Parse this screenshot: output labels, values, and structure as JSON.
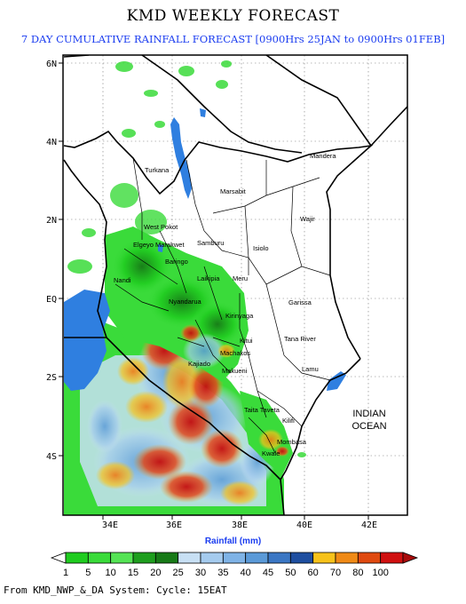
{
  "header": {
    "title": "KMD WEEKLY FORECAST",
    "subtitle": "7 DAY CUMULATIVE RAINFALL FORECAST [0900Hrs 25JAN to 0900Hrs 01FEB]"
  },
  "map": {
    "lat_ticks": [
      "6N",
      "4N",
      "2N",
      "EQ",
      "2S",
      "4S"
    ],
    "lon_ticks": [
      "34E",
      "36E",
      "38E",
      "40E",
      "42E"
    ],
    "places": [
      "Mandera",
      "Turkana",
      "Marsabit",
      "Wajir",
      "West Pokot",
      "Samburu",
      "Isiolo",
      "Baringo",
      "Laikipia",
      "Meru",
      "Garissa",
      "Kitui",
      "Tana River",
      "Lamu",
      "Kajiado",
      "Taita Taveta",
      "Kilifi",
      "Mombasa",
      "Kwale",
      "Makueni",
      "Machakos",
      "Kirinyaga",
      "Nyandarua",
      "Elgeyo Marakwet",
      "Nandi"
    ],
    "ocean_label": "INDIAN OCEAN",
    "ocean_label_lines": [
      "INDIAN",
      "OCEAN"
    ]
  },
  "legend": {
    "title": "Rainfall (mm)",
    "values": [
      "1",
      "5",
      "10",
      "15",
      "20",
      "25",
      "30",
      "35",
      "40",
      "45",
      "50",
      "60",
      "70",
      "80",
      "100"
    ],
    "colors": [
      "#ffffff",
      "#1fcc1f",
      "#3adb3a",
      "#55e455",
      "#1e9e1e",
      "#177a17",
      "#c8e0f4",
      "#a5cbee",
      "#7fb3e6",
      "#5b9ad8",
      "#3b77c4",
      "#1f4fa0",
      "#f7c21a",
      "#f08a16",
      "#e04a10",
      "#d01010",
      "#a80a0a"
    ]
  },
  "footer": {
    "text": "From KMD_NWP_&_DA System: Cycle: 15EAT"
  }
}
